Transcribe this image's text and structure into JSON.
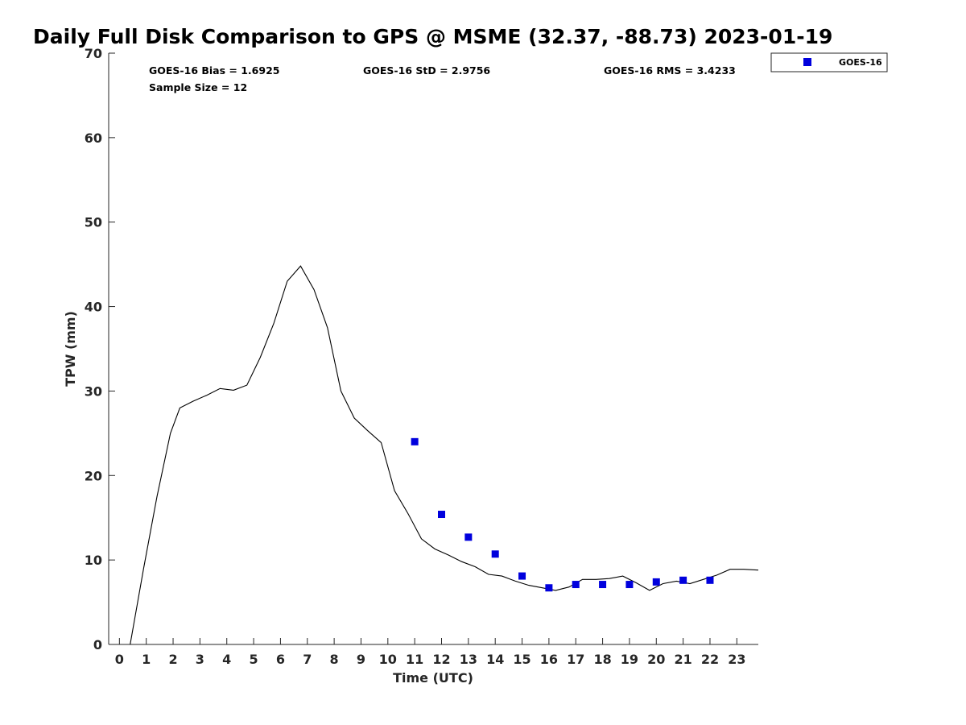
{
  "chart_data": {
    "type": "line",
    "title": "Daily Full Disk Comparison to GPS @ MSME (32.37, -88.73) 2023-01-19",
    "xlabel": "Time (UTC)",
    "ylabel": "TPW (mm)",
    "xlim": [
      -0.4,
      23.8
    ],
    "ylim": [
      0,
      70
    ],
    "x_ticks": [
      0,
      1,
      2,
      3,
      4,
      5,
      6,
      7,
      8,
      9,
      10,
      11,
      12,
      13,
      14,
      15,
      16,
      17,
      18,
      19,
      20,
      21,
      22,
      23
    ],
    "x_tick_labels": [
      "0",
      "1",
      "2",
      "3",
      "4",
      "5",
      "6",
      "7",
      "8",
      "9",
      "10",
      "11",
      "12",
      "13",
      "14",
      "15",
      "16",
      "17",
      "18",
      "19",
      "20",
      "21",
      "22",
      "23"
    ],
    "y_ticks": [
      0,
      10,
      20,
      30,
      40,
      50,
      60,
      70
    ],
    "y_tick_labels": [
      "0",
      "10",
      "20",
      "30",
      "40",
      "50",
      "60",
      "70"
    ],
    "grid": false,
    "legend_position": "top-right, outside plot",
    "stats": {
      "bias": "GOES-16 Bias = 1.6925",
      "std": "GOES-16 StD = 2.9756",
      "rms": "GOES-16 RMS = 3.4233",
      "sample": "Sample Size = 12"
    },
    "series": [
      {
        "kind": "line",
        "color": "#000000",
        "x": [
          0.4,
          0.9,
          1.4,
          1.9,
          2.25,
          2.75,
          3.25,
          3.75,
          4.25,
          4.75,
          5.25,
          5.75,
          6.25,
          6.75,
          7.25,
          7.75,
          8.25,
          8.75,
          9.25,
          9.75,
          10.25,
          10.75,
          11.25,
          11.75,
          12.25,
          12.75,
          13.25,
          13.75,
          14.25,
          14.75,
          15.25,
          15.75,
          16.25,
          16.75,
          17.25,
          17.75,
          18.25,
          18.75,
          19.25,
          19.75,
          20.25,
          20.75,
          21.25,
          21.75,
          22.25,
          22.75,
          23.25,
          23.8
        ],
        "y": [
          0,
          9,
          17.5,
          25,
          28,
          28.8,
          29.5,
          30.3,
          30.1,
          30.7,
          34,
          38,
          43,
          44.8,
          42,
          37.5,
          30,
          26.8,
          25.3,
          23.9,
          18.2,
          15.5,
          12.5,
          11.3,
          10.6,
          9.8,
          9.2,
          8.3,
          8.1,
          7.5,
          7.0,
          6.7,
          6.4,
          6.8,
          7.7,
          7.7,
          7.8,
          8.1,
          7.3,
          6.4,
          7.2,
          7.5,
          7.2,
          7.7,
          8.2,
          8.9,
          8.9,
          8.8
        ]
      },
      {
        "name": "GOES-16",
        "kind": "scatter",
        "marker": "square",
        "color": "#0000dd",
        "x": [
          11,
          12,
          13,
          14,
          15,
          16,
          17,
          18,
          19,
          20,
          21,
          22
        ],
        "y": [
          24.0,
          15.4,
          12.7,
          10.7,
          8.1,
          6.7,
          7.1,
          7.1,
          7.1,
          7.4,
          7.6,
          7.6
        ]
      }
    ]
  }
}
